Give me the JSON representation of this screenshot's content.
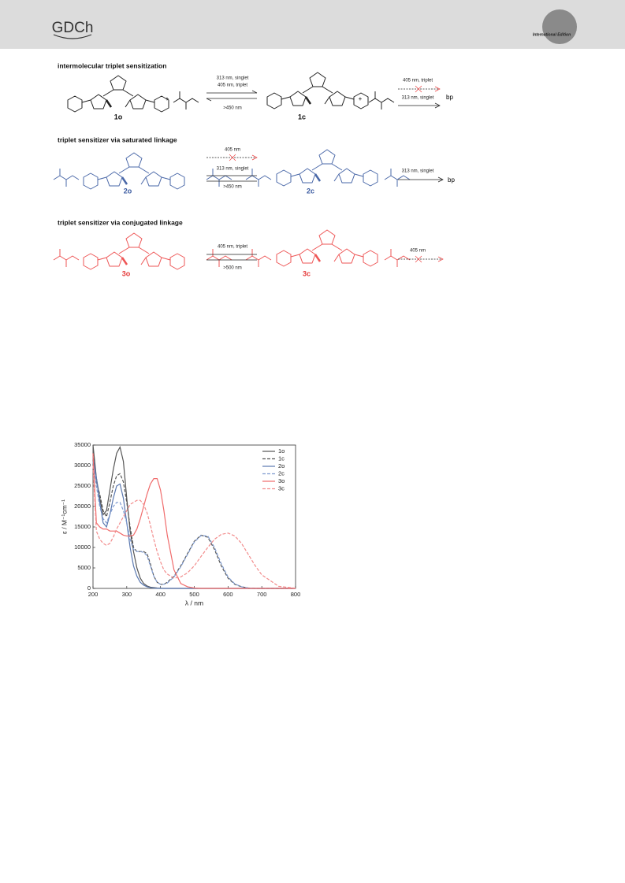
{
  "header": {
    "logo": "GDCh",
    "edition": "International Edition"
  },
  "scheme": {
    "titles": [
      "intermolecular triplet sensitization",
      "triplet sensitizer via saturated linkage",
      "triplet sensitizer via conjugated linkage"
    ],
    "conditions": [
      "313 nm, singlet",
      "405 nm, triplet",
      ">450 nm",
      "405 nm, triplet",
      "313 nm, singlet",
      "405 nm",
      "313 nm, singlet",
      ">450 nm",
      "313 nm, singlet",
      "405 nm, triplet",
      ">500 nm",
      "405 nm"
    ],
    "compounds": [
      "1o",
      "1c",
      "2o",
      "2c",
      "3o",
      "3c"
    ],
    "product": "bp",
    "plus": "+"
  },
  "chart_data": {
    "type": "line",
    "xlabel": "λ / nm",
    "ylabel": "ε / M⁻¹cm⁻¹",
    "xlim": [
      200,
      800
    ],
    "ylim": [
      0,
      35000
    ],
    "xticks": [
      200,
      300,
      400,
      500,
      600,
      700,
      800
    ],
    "yticks": [
      0,
      5000,
      10000,
      15000,
      20000,
      25000,
      30000,
      35000
    ],
    "legend": "upper right",
    "x": [
      200,
      210,
      220,
      230,
      240,
      250,
      260,
      270,
      280,
      290,
      300,
      310,
      320,
      330,
      340,
      350,
      360,
      370,
      380,
      390,
      400,
      410,
      420,
      440,
      460,
      480,
      500,
      520,
      540,
      560,
      580,
      600,
      620,
      640,
      660,
      680,
      700,
      750,
      800
    ],
    "series": [
      {
        "name": "1o",
        "color": "#555555",
        "dash": "solid",
        "values": [
          35000,
          27000,
          22000,
          18000,
          19000,
          24000,
          29000,
          33000,
          34500,
          31000,
          22000,
          14000,
          9000,
          5000,
          2500,
          1200,
          600,
          300,
          200,
          100,
          50,
          0,
          0,
          0,
          0,
          0,
          0,
          0,
          0,
          0,
          0,
          0,
          0,
          0,
          0,
          0,
          0,
          0,
          0
        ]
      },
      {
        "name": "1c",
        "color": "#555555",
        "dash": "dashed",
        "values": [
          33000,
          26000,
          23000,
          19000,
          17500,
          21000,
          25000,
          27500,
          28000,
          26000,
          21000,
          15000,
          10000,
          9000,
          9000,
          9000,
          8500,
          6000,
          3000,
          1500,
          1000,
          1000,
          1500,
          3000,
          5500,
          8500,
          11500,
          13000,
          12500,
          9500,
          5500,
          2500,
          1000,
          400,
          100,
          0,
          0,
          0,
          0
        ]
      },
      {
        "name": "2o",
        "color": "#5a78b0",
        "dash": "solid",
        "values": [
          32000,
          27000,
          21000,
          16000,
          15000,
          18000,
          22000,
          25000,
          25500,
          22000,
          16000,
          10000,
          5500,
          3000,
          1500,
          800,
          400,
          200,
          100,
          50,
          0,
          0,
          0,
          0,
          0,
          0,
          0,
          0,
          0,
          0,
          0,
          0,
          0,
          0,
          0,
          0,
          0,
          0,
          0
        ]
      },
      {
        "name": "2c",
        "color": "#7f9bd0",
        "dash": "dashed",
        "values": [
          31000,
          25000,
          20000,
          17000,
          16000,
          18000,
          20000,
          21000,
          21000,
          19000,
          16000,
          12000,
          9500,
          9000,
          9000,
          8800,
          8000,
          5500,
          3000,
          1500,
          1000,
          1000,
          1300,
          2800,
          5300,
          8300,
          11300,
          12900,
          12800,
          10000,
          6000,
          2800,
          1100,
          400,
          100,
          0,
          0,
          0,
          0
        ]
      },
      {
        "name": "3o",
        "color": "#f06b6b",
        "dash": "solid",
        "values": [
          33000,
          16000,
          15000,
          14500,
          14500,
          14000,
          14000,
          14000,
          13500,
          13000,
          12800,
          12800,
          13000,
          14500,
          17000,
          20000,
          23000,
          25500,
          26800,
          26800,
          24000,
          19000,
          13000,
          4500,
          1200,
          400,
          100,
          0,
          0,
          0,
          0,
          0,
          0,
          0,
          0,
          0,
          0,
          0,
          0
        ]
      },
      {
        "name": "3c",
        "color": "#f28b8b",
        "dash": "dashed",
        "values": [
          30000,
          14000,
          12000,
          11000,
          10500,
          11000,
          12500,
          14500,
          16000,
          17500,
          19000,
          20500,
          21000,
          21500,
          21500,
          20500,
          18500,
          15500,
          12000,
          9000,
          6500,
          4500,
          3500,
          2500,
          2800,
          3800,
          5500,
          7800,
          10000,
          12000,
          13200,
          13500,
          12800,
          11000,
          8300,
          5600,
          3300,
          500,
          50
        ]
      }
    ]
  }
}
